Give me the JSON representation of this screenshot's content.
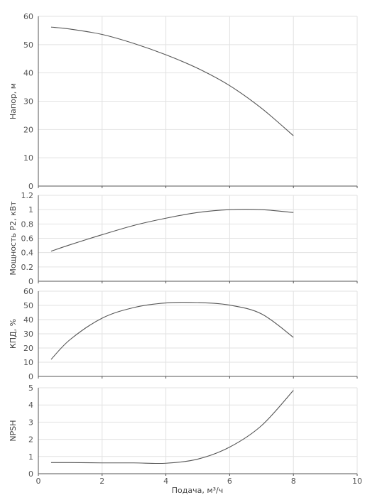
{
  "x_axis": {
    "title": "Подача, м³/ч",
    "min": 0,
    "max": 10,
    "ticks": [
      0,
      2,
      4,
      6,
      8,
      10
    ],
    "grid": true
  },
  "chart_data": [
    {
      "type": "line",
      "ylabel": "Напор, м",
      "xlabel": "",
      "ylim": [
        0,
        60
      ],
      "yticks": [
        0,
        10,
        20,
        30,
        40,
        50,
        60
      ],
      "grid": true,
      "series": [
        {
          "x": [
            0.4,
            1,
            2,
            3,
            4,
            5,
            6,
            7,
            8
          ],
          "y": [
            56.2,
            55.5,
            53.6,
            50.4,
            46.4,
            41.6,
            35.5,
            27.5,
            17.8
          ]
        }
      ]
    },
    {
      "type": "line",
      "ylabel": "Мощность P2, кВт",
      "xlabel": "",
      "ylim": [
        0,
        1.2
      ],
      "yticks": [
        0,
        0.2,
        0.4,
        0.6,
        0.8,
        1,
        1.2
      ],
      "grid": true,
      "series": [
        {
          "x": [
            0.4,
            1,
            2,
            3,
            4,
            5,
            6,
            7,
            8
          ],
          "y": [
            0.42,
            0.51,
            0.65,
            0.78,
            0.88,
            0.96,
            1.0,
            1.0,
            0.96
          ]
        }
      ]
    },
    {
      "type": "line",
      "ylabel": "КПД, %",
      "xlabel": "",
      "ylim": [
        0,
        60
      ],
      "yticks": [
        0,
        10,
        20,
        30,
        40,
        50,
        60
      ],
      "grid": true,
      "series": [
        {
          "x": [
            0.4,
            1,
            2,
            3,
            4,
            5,
            6,
            7,
            8
          ],
          "y": [
            12,
            26,
            41,
            48.5,
            51.7,
            52,
            50.2,
            44,
            27.5
          ]
        }
      ]
    },
    {
      "type": "line",
      "ylabel": "NPSH",
      "xlabel": "",
      "ylim": [
        0,
        5
      ],
      "yticks": [
        0,
        1,
        2,
        3,
        4,
        5
      ],
      "grid": true,
      "series": [
        {
          "x": [
            0.4,
            1,
            2,
            3,
            4,
            5,
            6,
            7,
            8
          ],
          "y": [
            0.65,
            0.65,
            0.63,
            0.63,
            0.61,
            0.85,
            1.55,
            2.8,
            4.85
          ]
        }
      ]
    }
  ]
}
